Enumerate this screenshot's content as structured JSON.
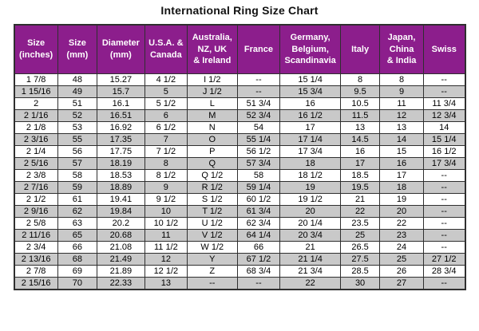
{
  "title": "International Ring Size Chart",
  "colors": {
    "header_bg": "#8C1E8C",
    "row_alt_bg": "#C9C9C9",
    "row_bg": "#FFFFFF",
    "border": "#2F2F2F",
    "header_text": "#FFFFFF",
    "text": "#000000"
  },
  "chart_data": {
    "type": "table",
    "title": "International Ring Size Chart",
    "columns": [
      "Size\n(inches)",
      "Size\n(mm)",
      "Diameter\n(mm)",
      "U.S.A. &\nCanada",
      "Australia,\nNZ, UK\n& Ireland",
      "France",
      "Germany,\nBelgium,\nScandinavia",
      "Italy",
      "Japan,\nChina\n& India",
      "Swiss"
    ],
    "rows": [
      [
        "1 7/8",
        "48",
        "15.27",
        "4 1/2",
        "I 1/2",
        "--",
        "15 1/4",
        "8",
        "8",
        "--"
      ],
      [
        "1 15/16",
        "49",
        "15.7",
        "5",
        "J 1/2",
        "--",
        "15 3/4",
        "9.5",
        "9",
        "--"
      ],
      [
        "2",
        "51",
        "16.1",
        "5 1/2",
        "L",
        "51 3/4",
        "16",
        "10.5",
        "11",
        "11 3/4"
      ],
      [
        "2 1/16",
        "52",
        "16.51",
        "6",
        "M",
        "52 3/4",
        "16 1/2",
        "11.5",
        "12",
        "12 3/4"
      ],
      [
        "2 1/8",
        "53",
        "16.92",
        "6 1/2",
        "N",
        "54",
        "17",
        "13",
        "13",
        "14"
      ],
      [
        "2 3/16",
        "55",
        "17.35",
        "7",
        "O",
        "55 1/4",
        "17 1/4",
        "14.5",
        "14",
        "15 1/4"
      ],
      [
        "2 1/4",
        "56",
        "17.75",
        "7 1/2",
        "P",
        "56 1/2",
        "17 3/4",
        "16",
        "15",
        "16 1/2"
      ],
      [
        "2 5/16",
        "57",
        "18.19",
        "8",
        "Q",
        "57 3/4",
        "18",
        "17",
        "16",
        "17 3/4"
      ],
      [
        "2 3/8",
        "58",
        "18.53",
        "8 1/2",
        "Q 1/2",
        "58",
        "18 1/2",
        "18.5",
        "17",
        "--"
      ],
      [
        "2 7/16",
        "59",
        "18.89",
        "9",
        "R 1/2",
        "59 1/4",
        "19",
        "19.5",
        "18",
        "--"
      ],
      [
        "2 1/2",
        "61",
        "19.41",
        "9 1/2",
        "S 1/2",
        "60 1/2",
        "19 1/2",
        "21",
        "19",
        "--"
      ],
      [
        "2 9/16",
        "62",
        "19.84",
        "10",
        "T 1/2",
        "61 3/4",
        "20",
        "22",
        "20",
        "--"
      ],
      [
        "2 5/8",
        "63",
        "20.2",
        "10 1/2",
        "U 1/2",
        "62 3/4",
        "20 1/4",
        "23.5",
        "22",
        "--"
      ],
      [
        "2 11/16",
        "65",
        "20.68",
        "11",
        "V 1/2",
        "64 1/4",
        "20 3/4",
        "25",
        "23",
        "--"
      ],
      [
        "2 3/4",
        "66",
        "21.08",
        "11 1/2",
        "W 1/2",
        "66",
        "21",
        "26.5",
        "24",
        "--"
      ],
      [
        "2 13/16",
        "68",
        "21.49",
        "12",
        "Y",
        "67 1/2",
        "21 1/4",
        "27.5",
        "25",
        "27 1/2"
      ],
      [
        "2 7/8",
        "69",
        "21.89",
        "12 1/2",
        "Z",
        "68 3/4",
        "21 3/4",
        "28.5",
        "26",
        "28 3/4"
      ],
      [
        "2 15/16",
        "70",
        "22.33",
        "13",
        "--",
        "--",
        "22",
        "30",
        "27",
        "--"
      ]
    ]
  }
}
